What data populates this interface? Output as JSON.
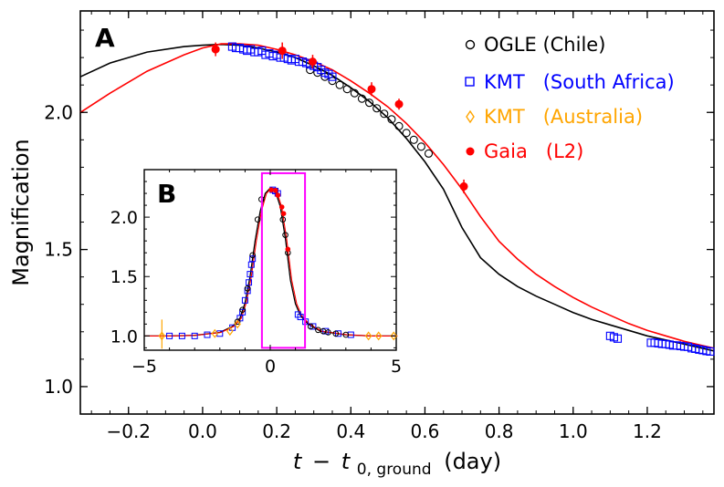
{
  "chart_data": {
    "type": "scatter",
    "main": {
      "panel_label": "A",
      "xlabel_italic": "t",
      "xlabel_minus": "−",
      "xlabel_t0": "t",
      "xlabel_sub": "0, ground",
      "xlabel_unit": "(day)",
      "ylabel": "Magnification",
      "xlim": [
        -0.33,
        1.38
      ],
      "ylim": [
        0.9,
        2.37
      ],
      "xticks": [
        -0.2,
        0.0,
        0.2,
        0.4,
        0.6,
        0.8,
        1.0,
        1.2
      ],
      "xtick_labels": [
        "−0.2",
        "0.0",
        "0.2",
        "0.4",
        "0.6",
        "0.8",
        "1.0",
        "1.2"
      ],
      "yticks": [
        1.0,
        1.5,
        2.0
      ],
      "ytick_labels": [
        "1.0",
        "1.5",
        "2.0"
      ],
      "series": [
        {
          "name": "OGLE (Chile)",
          "color": "#000000",
          "marker": "circle-open",
          "x": [
            0.29,
            0.31,
            0.33,
            0.35,
            0.37,
            0.39,
            0.41,
            0.43,
            0.45,
            0.47,
            0.49,
            0.51,
            0.53,
            0.55,
            0.57,
            0.59,
            0.61
          ],
          "y": [
            2.155,
            2.145,
            2.13,
            2.115,
            2.1,
            2.085,
            2.07,
            2.05,
            2.035,
            2.015,
            1.995,
            1.975,
            1.95,
            1.925,
            1.9,
            1.875,
            1.85
          ]
        },
        {
          "name": "KMT (South Africa)",
          "color": "#0000ff",
          "marker": "square-open",
          "x": [
            0.08,
            0.09,
            0.1,
            0.11,
            0.12,
            0.13,
            0.14,
            0.15,
            0.16,
            0.17,
            0.18,
            0.19,
            0.2,
            0.21,
            0.22,
            0.23,
            0.24,
            0.25,
            0.26,
            0.27,
            0.28,
            0.29,
            0.3,
            0.31,
            0.32,
            0.33,
            0.34,
            0.35,
            1.1,
            1.11,
            1.12,
            1.21,
            1.22,
            1.23,
            1.24,
            1.25,
            1.26,
            1.27,
            1.28,
            1.29,
            1.3,
            1.31,
            1.32,
            1.33,
            1.34,
            1.35,
            1.36,
            1.37
          ],
          "y": [
            2.24,
            2.235,
            2.235,
            2.23,
            2.225,
            2.23,
            2.22,
            2.22,
            2.225,
            2.21,
            2.215,
            2.205,
            2.21,
            2.2,
            2.2,
            2.195,
            2.19,
            2.195,
            2.185,
            2.185,
            2.18,
            2.175,
            2.17,
            2.165,
            2.155,
            2.145,
            2.14,
            2.13,
            1.185,
            1.18,
            1.175,
            1.16,
            1.16,
            1.158,
            1.156,
            1.155,
            1.153,
            1.15,
            1.15,
            1.148,
            1.146,
            1.145,
            1.14,
            1.138,
            1.135,
            1.133,
            1.13,
            1.128
          ]
        },
        {
          "name": "KMT (Australia)",
          "color": "#ffa500",
          "marker": "diamond-open",
          "x": [],
          "y": []
        },
        {
          "name": "Gaia (L2)",
          "color": "#ff0000",
          "marker": "circle-filled",
          "x": [
            0.035,
            0.215,
            0.297,
            0.456,
            0.53,
            0.705
          ],
          "y": [
            2.23,
            2.225,
            2.185,
            2.085,
            2.03,
            1.73
          ],
          "err": [
            0.025,
            0.03,
            0.025,
            0.025,
            0.02,
            0.025
          ]
        }
      ],
      "models": [
        {
          "name": "ground model",
          "color": "#000000",
          "x": [
            -0.33,
            -0.25,
            -0.15,
            -0.05,
            0.0,
            0.05,
            0.1,
            0.15,
            0.2,
            0.25,
            0.3,
            0.35,
            0.4,
            0.45,
            0.5,
            0.55,
            0.6,
            0.65,
            0.7,
            0.75,
            0.8,
            0.85,
            0.9,
            0.95,
            1.0,
            1.05,
            1.1,
            1.15,
            1.2,
            1.25,
            1.3,
            1.38
          ],
          "y": [
            2.13,
            2.18,
            2.22,
            2.24,
            2.245,
            2.248,
            2.245,
            2.235,
            2.22,
            2.2,
            2.17,
            2.135,
            2.09,
            2.04,
            1.98,
            1.905,
            1.82,
            1.72,
            1.58,
            1.47,
            1.41,
            1.365,
            1.33,
            1.3,
            1.27,
            1.245,
            1.225,
            1.205,
            1.185,
            1.17,
            1.155,
            1.13
          ]
        },
        {
          "name": "Gaia model",
          "color": "#ff0000",
          "x": [
            -0.33,
            -0.25,
            -0.15,
            -0.05,
            0.0,
            0.05,
            0.1,
            0.15,
            0.2,
            0.25,
            0.3,
            0.35,
            0.4,
            0.45,
            0.5,
            0.55,
            0.6,
            0.65,
            0.7,
            0.75,
            0.8,
            0.85,
            0.9,
            0.95,
            1.0,
            1.05,
            1.1,
            1.15,
            1.2,
            1.25,
            1.3,
            1.38
          ],
          "y": [
            2.0,
            2.07,
            2.15,
            2.21,
            2.235,
            2.25,
            2.25,
            2.245,
            2.23,
            2.21,
            2.185,
            2.155,
            2.115,
            2.07,
            2.02,
            1.96,
            1.89,
            1.81,
            1.72,
            1.62,
            1.53,
            1.465,
            1.41,
            1.365,
            1.325,
            1.29,
            1.26,
            1.23,
            1.205,
            1.185,
            1.165,
            1.14
          ]
        }
      ]
    },
    "inset": {
      "panel_label": "B",
      "xlim": [
        -5,
        5
      ],
      "ylim": [
        0.88,
        2.4
      ],
      "xticks": [
        -5,
        0,
        5
      ],
      "xtick_labels": [
        "−5",
        "0",
        "5"
      ],
      "yticks": [
        1.0,
        1.5,
        2.0
      ],
      "ytick_labels": [
        "1.0",
        "1.5",
        "2.0"
      ],
      "zoom_box": {
        "x0": -0.33,
        "x1": 1.38,
        "y0": 0.9,
        "y1": 2.37,
        "color": "#ff00ff"
      },
      "model_x": [
        -5,
        -4,
        -3,
        -2,
        -1.5,
        -1.2,
        -1.0,
        -0.8,
        -0.6,
        -0.4,
        -0.2,
        0.0,
        0.2,
        0.4,
        0.6,
        0.8,
        1.0,
        1.2,
        1.5,
        2.0,
        3.0,
        4.0,
        5.0
      ],
      "model_y": [
        1.0,
        1.0,
        1.005,
        1.03,
        1.08,
        1.15,
        1.28,
        1.5,
        1.8,
        2.05,
        2.2,
        2.245,
        2.22,
        2.09,
        1.82,
        1.47,
        1.27,
        1.17,
        1.1,
        1.04,
        1.01,
        1.0,
        1.0
      ],
      "black_x": [
        -1.3,
        -1.1,
        -0.9,
        -0.7,
        -0.5,
        -0.35,
        0.5,
        0.6,
        0.7,
        1.6,
        1.9,
        2.1,
        2.3,
        2.6,
        3.0
      ],
      "black_y": [
        1.12,
        1.22,
        1.4,
        1.68,
        1.98,
        2.15,
        1.98,
        1.85,
        1.7,
        1.08,
        1.05,
        1.04,
        1.03,
        1.02,
        1.01
      ],
      "blue_x": [
        -4.0,
        -3.5,
        -3.0,
        -2.5,
        -2.0,
        -1.5,
        -1.2,
        -1.1,
        -1.0,
        -0.9,
        -0.85,
        -0.8,
        -0.75,
        -0.7,
        0.1,
        0.2,
        0.3,
        1.1,
        1.2,
        1.4,
        1.7,
        2.2,
        2.7,
        3.2
      ],
      "blue_y": [
        1.0,
        1.0,
        1.0,
        1.01,
        1.02,
        1.07,
        1.15,
        1.2,
        1.3,
        1.38,
        1.45,
        1.52,
        1.6,
        1.65,
        2.23,
        2.22,
        2.2,
        1.18,
        1.16,
        1.12,
        1.08,
        1.04,
        1.02,
        1.01
      ],
      "orange_x": [
        -4.3,
        -2.2,
        -1.6,
        -1.3,
        3.9,
        4.3,
        4.9
      ],
      "orange_y": [
        1.0,
        1.02,
        1.04,
        1.1,
        1.0,
        1.0,
        1.0
      ],
      "red_x": [
        0.04,
        0.21,
        0.3,
        0.46,
        0.53,
        0.7
      ],
      "red_y": [
        2.23,
        2.225,
        2.185,
        2.085,
        2.03,
        1.73
      ]
    }
  }
}
